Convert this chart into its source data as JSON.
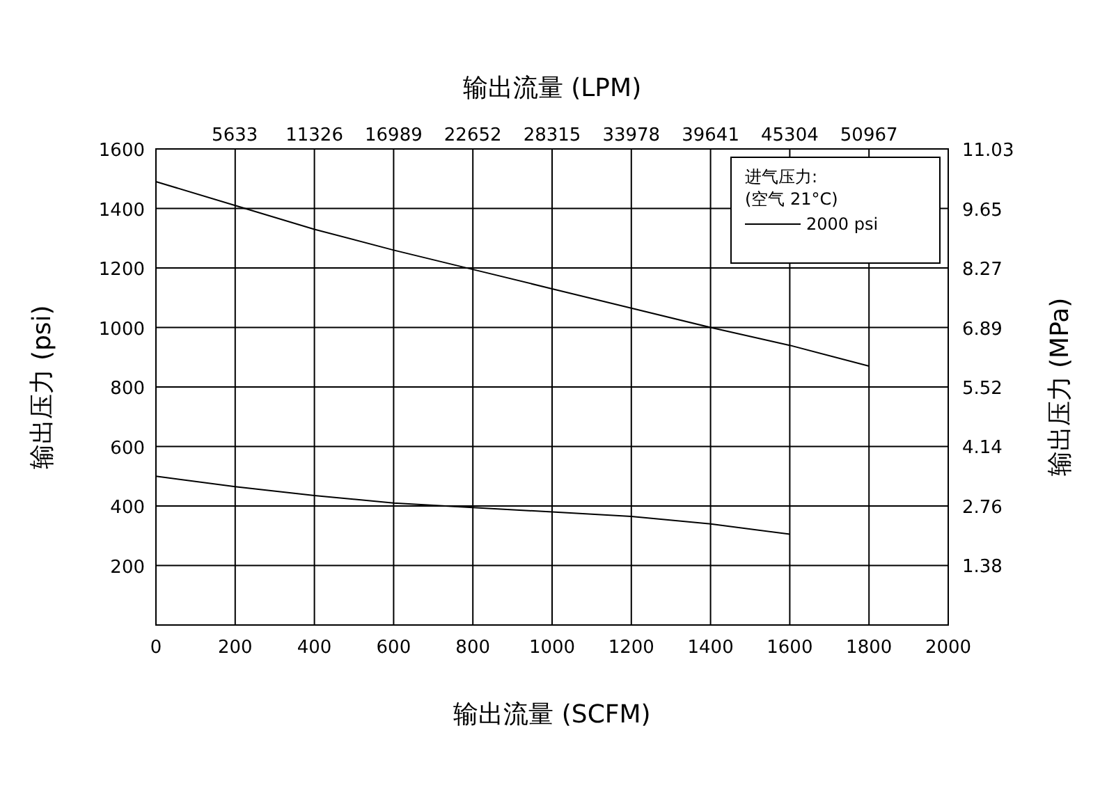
{
  "chart_data": {
    "type": "line",
    "xlabel": "输出流量 (SCFM)",
    "x2label": "输出流量 (LPM)",
    "ylabel": "输出压力 (psi)",
    "y2label": "输出压力 (MPa)",
    "legend_title": "进气压力: (空气 21°C)",
    "legend": "top right",
    "grid": true,
    "marker": "none",
    "line_style": "solid",
    "xlim": [
      0,
      2000
    ],
    "xticks": [
      0,
      200,
      400,
      600,
      800,
      1000,
      1200,
      1400,
      1600,
      1800,
      2000
    ],
    "x2lim": [
      0,
      56630
    ],
    "x2ticks": [
      5633,
      11326,
      16989,
      22652,
      28315,
      33978,
      39641,
      45304,
      50967
    ],
    "ylim": [
      0,
      1600
    ],
    "yticks": [
      200,
      400,
      600,
      800,
      1000,
      1200,
      1400,
      1600
    ],
    "y2lim": [
      0,
      11.03
    ],
    "y2ticks": [
      1.38,
      2.76,
      4.14,
      5.52,
      6.89,
      8.27,
      9.65,
      11.03
    ],
    "series": [
      {
        "name": "2000 psi",
        "color": "#000000",
        "x": [
          0,
          200,
          400,
          600,
          800,
          1000,
          1200,
          1400,
          1600,
          1800
        ],
        "values": [
          1490,
          1410,
          1330,
          1260,
          1195,
          1130,
          1065,
          1000,
          940,
          870
        ]
      },
      {
        "color": "#000000",
        "x": [
          0,
          200,
          400,
          600,
          800,
          1000,
          1200,
          1400,
          1600
        ],
        "values": [
          500,
          465,
          435,
          410,
          395,
          380,
          365,
          340,
          305
        ]
      }
    ]
  }
}
